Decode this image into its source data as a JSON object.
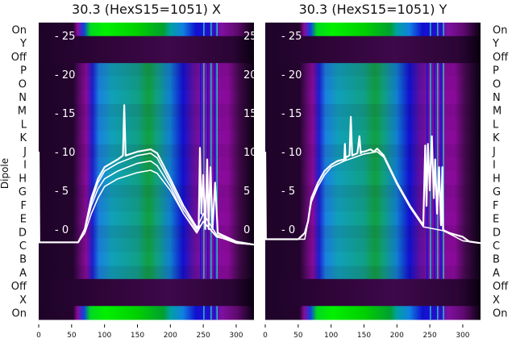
{
  "chart_data": [
    {
      "type": "heatmap",
      "title": "30.3 (HexS15=1051) X",
      "ylabel": "Dipole",
      "row_labels": [
        "On",
        "Y",
        "Off",
        "P",
        "O",
        "N",
        "M",
        "L",
        "K",
        "J",
        "I",
        "H",
        "G",
        "F",
        "E",
        "D",
        "C",
        "B",
        "A",
        "Off",
        "X",
        "On"
      ],
      "row_kind": [
        "on",
        "dark",
        "dark",
        "dip",
        "dip",
        "dip",
        "dip",
        "dip",
        "dip",
        "dip",
        "dip",
        "dip",
        "dip",
        "dip",
        "dip",
        "dip",
        "dip",
        "dip",
        "dip",
        "dark",
        "dark",
        "on"
      ],
      "xlim": [
        0,
        327
      ],
      "xticks": [
        0,
        50,
        100,
        150,
        200,
        250,
        300
      ],
      "overlay_ylim": [
        -2.5,
        27.5
      ],
      "overlay_yticks": [
        0,
        5,
        10,
        15,
        20,
        25
      ],
      "traces": [
        {
          "x": [
            0,
            1,
            2,
            60,
            70,
            80,
            90,
            100,
            120,
            128,
            130,
            132,
            150,
            170,
            180,
            200,
            220,
            238,
            243,
            245,
            247,
            250,
            253,
            256,
            258,
            261,
            264,
            268,
            272,
            280,
            300,
            327
          ],
          "y": [
            10,
            -1.7,
            -1.7,
            -1.7,
            0,
            4,
            6.5,
            8,
            9,
            9.5,
            16,
            9.5,
            10,
            10.3,
            9.8,
            6.5,
            3,
            0.5,
            0,
            10.5,
            2,
            7,
            0,
            9,
            0,
            8,
            0,
            6,
            -0.5,
            -0.8,
            -1.6,
            -2
          ]
        },
        {
          "x": [
            0,
            60,
            70,
            80,
            90,
            100,
            120,
            150,
            170,
            180,
            200,
            220,
            240,
            250,
            270,
            280,
            300,
            327
          ],
          "y": [
            -1.7,
            -1.7,
            0,
            3.5,
            6,
            7.5,
            8.5,
            9.5,
            9.8,
            9.2,
            6,
            2.5,
            0,
            2,
            -0.7,
            -1,
            -1.7,
            -2
          ]
        },
        {
          "x": [
            0,
            60,
            70,
            80,
            90,
            100,
            120,
            150,
            170,
            180,
            200,
            220,
            240,
            250,
            270,
            280,
            300,
            327
          ],
          "y": [
            -1.7,
            -1.7,
            0,
            3,
            5.2,
            6.5,
            7.5,
            8.5,
            8.8,
            8.2,
            5.5,
            2,
            -0.5,
            1,
            -0.9,
            -1.2,
            -1.8,
            -2
          ]
        },
        {
          "x": [
            0,
            60,
            70,
            80,
            90,
            100,
            120,
            150,
            170,
            180,
            200,
            220,
            240,
            250,
            270,
            280,
            300,
            327
          ],
          "y": [
            -1.7,
            -1.7,
            -0.5,
            2,
            4,
            5.5,
            6.5,
            7.3,
            7.6,
            7.2,
            5,
            2,
            -0.3,
            1,
            -1,
            -1.2,
            -1.8,
            -2
          ]
        }
      ]
    },
    {
      "type": "heatmap",
      "title": "30.3 (HexS15=1051) Y",
      "row_labels": [
        "On",
        "Y",
        "Off",
        "P",
        "O",
        "N",
        "M",
        "L",
        "K",
        "J",
        "I",
        "H",
        "G",
        "F",
        "E",
        "D",
        "C",
        "B",
        "A",
        "Off",
        "X",
        "On"
      ],
      "row_kind": [
        "on",
        "dark",
        "dark",
        "dip",
        "dip",
        "dip",
        "dip",
        "dip",
        "dip",
        "dip",
        "dip",
        "dip",
        "dip",
        "dip",
        "dip",
        "dip",
        "dip",
        "dip",
        "dip",
        "dark",
        "dark",
        "on"
      ],
      "xlim": [
        0,
        327
      ],
      "xticks": [
        0,
        50,
        100,
        150,
        200,
        250,
        300
      ],
      "overlay_ylim": [
        -2.5,
        27.5
      ],
      "overlay_yticks": [
        0,
        5,
        10,
        15,
        20,
        25
      ],
      "traces": [
        {
          "x": [
            0,
            1,
            2,
            50,
            60,
            65,
            70,
            80,
            90,
            100,
            110,
            120,
            121,
            122,
            123,
            128,
            130,
            132,
            140,
            143,
            145,
            147,
            150,
            160,
            165,
            170,
            180,
            200,
            220,
            240,
            243,
            245,
            247,
            250,
            253,
            256,
            258,
            261,
            264,
            267,
            269,
            270,
            272,
            280,
            300,
            310,
            327
          ],
          "y": [
            10,
            -1.3,
            -1.3,
            -1.3,
            -0.5,
            1,
            4,
            6,
            7.5,
            8.3,
            8.8,
            9,
            11,
            9,
            9.3,
            9.5,
            14.5,
            9.5,
            9.8,
            12,
            9.8,
            10,
            10,
            10.3,
            10,
            10.4,
            9.5,
            6,
            3,
            0.5,
            10.8,
            3,
            11,
            5,
            12,
            4,
            9,
            2,
            8,
            0.5,
            8,
            0,
            -0.2,
            -0.5,
            -1,
            -1.6,
            -1.8
          ]
        },
        {
          "x": [
            0,
            60,
            70,
            80,
            90,
            100,
            120,
            150,
            170,
            180,
            200,
            220,
            240,
            270,
            280,
            300,
            327
          ],
          "y": [
            -1.3,
            -1.3,
            3.5,
            5.5,
            7,
            8,
            8.8,
            9.7,
            10,
            9.3,
            5.8,
            2.8,
            0.3,
            -0.2,
            -0.6,
            -1.5,
            -1.8
          ]
        }
      ]
    }
  ]
}
